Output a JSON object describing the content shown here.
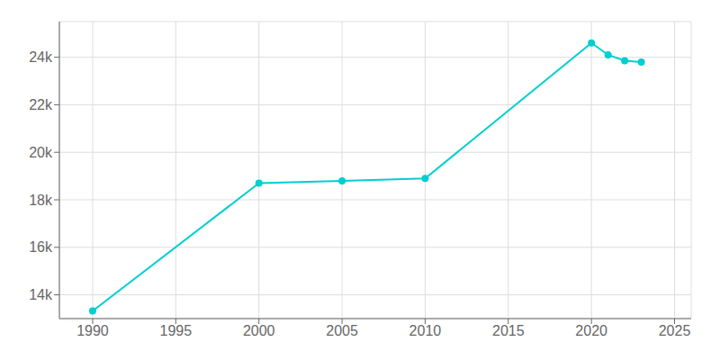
{
  "chart_data": {
    "type": "line",
    "x": [
      1990,
      2000,
      2005,
      2010,
      2020,
      2021,
      2022,
      2023
    ],
    "values": [
      13320,
      18700,
      18800,
      18900,
      24600,
      24100,
      23850,
      23800
    ],
    "color": "#00CED1",
    "marker": "circle",
    "xlim": [
      1988,
      2026
    ],
    "ylim": [
      13000,
      25500
    ],
    "xticks": [
      1990,
      1995,
      2000,
      2005,
      2010,
      2015,
      2020,
      2025
    ],
    "yticks": [
      {
        "value": 14000,
        "label": "14k"
      },
      {
        "value": 16000,
        "label": "16k"
      },
      {
        "value": 18000,
        "label": "18k"
      },
      {
        "value": 20000,
        "label": "20k"
      },
      {
        "value": 22000,
        "label": "22k"
      },
      {
        "value": 24000,
        "label": "24k"
      }
    ],
    "grid": true
  }
}
